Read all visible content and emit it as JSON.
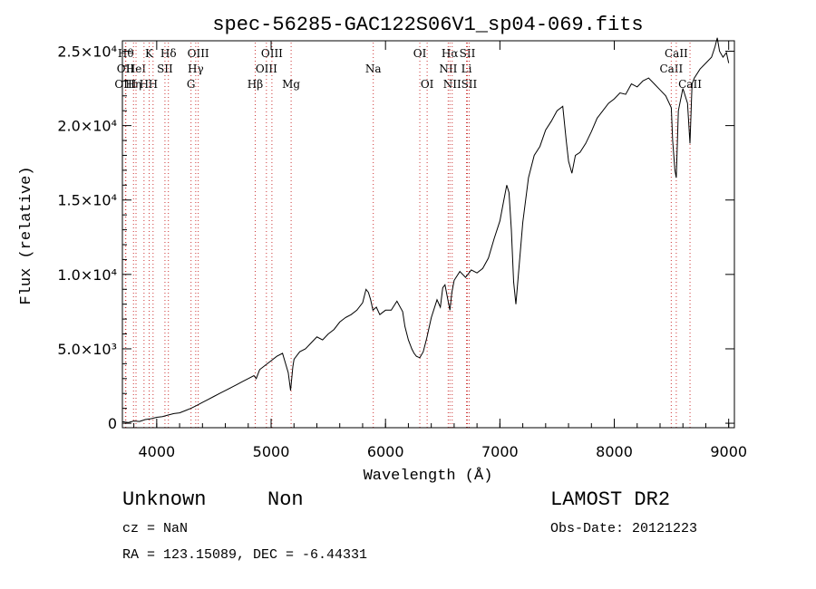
{
  "chart_data": {
    "type": "line",
    "title": "spec-56285-GAC122S06V1_sp04-069.fits",
    "xlabel": "Wavelength (Å)",
    "ylabel": "Flux (relative)",
    "xlim": [
      3700,
      9050
    ],
    "ylim": [
      -300,
      25700
    ],
    "xticks": [
      {
        "value": 4000,
        "label": "4000"
      },
      {
        "value": 5000,
        "label": "5000"
      },
      {
        "value": 6000,
        "label": "6000"
      },
      {
        "value": 7000,
        "label": "7000"
      },
      {
        "value": 8000,
        "label": "8000"
      },
      {
        "value": 9000,
        "label": "9000"
      }
    ],
    "yticks": [
      {
        "value": 0,
        "label": "0"
      },
      {
        "value": 5000,
        "label": "5.0×10³"
      },
      {
        "value": 10000,
        "label": "1.0×10⁴"
      },
      {
        "value": 15000,
        "label": "1.5×10⁴"
      },
      {
        "value": 20000,
        "label": "2.0×10⁴"
      },
      {
        "value": 25000,
        "label": "2.5×10⁴"
      }
    ],
    "series": [
      {
        "x": [
          3700,
          3750,
          3800,
          3850,
          3900,
          3950,
          4000,
          4050,
          4100,
          4150,
          4200,
          4250,
          4300,
          4350,
          4400,
          4450,
          4500,
          4550,
          4600,
          4650,
          4700,
          4750,
          4800,
          4850,
          4870,
          4900,
          4950,
          5000,
          5050,
          5100,
          5150,
          5170,
          5190,
          5200,
          5250,
          5300,
          5350,
          5400,
          5450,
          5500,
          5550,
          5600,
          5650,
          5700,
          5750,
          5800,
          5830,
          5850,
          5870,
          5890,
          5920,
          5950,
          6000,
          6050,
          6100,
          6150,
          6170,
          6200,
          6230,
          6250,
          6270,
          6300,
          6330,
          6360,
          6400,
          6450,
          6480,
          6500,
          6520,
          6550,
          6563,
          6580,
          6600,
          6650,
          6700,
          6750,
          6800,
          6850,
          6900,
          6950,
          7000,
          7030,
          7060,
          7080,
          7100,
          7120,
          7140,
          7160,
          7200,
          7250,
          7300,
          7350,
          7400,
          7450,
          7500,
          7550,
          7580,
          7600,
          7630,
          7660,
          7700,
          7750,
          7800,
          7850,
          7900,
          7950,
          8000,
          8050,
          8100,
          8150,
          8200,
          8250,
          8300,
          8350,
          8400,
          8450,
          8498,
          8510,
          8530,
          8542,
          8560,
          8600,
          8640,
          8662,
          8680,
          8700,
          8750,
          8800,
          8850,
          8880,
          8900,
          8920,
          8950,
          8980,
          9000
        ],
        "y": [
          100,
          50,
          150,
          120,
          250,
          300,
          400,
          450,
          550,
          650,
          700,
          850,
          1000,
          1200,
          1400,
          1600,
          1800,
          2000,
          2200,
          2400,
          2600,
          2800,
          3000,
          3200,
          3000,
          3600,
          3900,
          4200,
          4500,
          4700,
          3400,
          2200,
          3800,
          4300,
          4800,
          5000,
          5400,
          5800,
          5600,
          6000,
          6300,
          6800,
          7100,
          7300,
          7600,
          8100,
          9000,
          8800,
          8300,
          7600,
          7800,
          7300,
          7600,
          7600,
          8200,
          7500,
          6500,
          5600,
          5000,
          4700,
          4500,
          4400,
          4800,
          5700,
          7100,
          8300,
          7800,
          9100,
          9300,
          8100,
          7600,
          8800,
          9600,
          10200,
          9800,
          10300,
          10100,
          10400,
          11100,
          12400,
          13600,
          14800,
          16000,
          15500,
          13000,
          9500,
          8000,
          9800,
          13500,
          16500,
          18000,
          18600,
          19700,
          20300,
          21000,
          21300,
          19000,
          17600,
          16800,
          18000,
          18200,
          18800,
          19600,
          20500,
          21000,
          21500,
          21800,
          22200,
          22100,
          22800,
          22600,
          23000,
          23200,
          22800,
          22400,
          22000,
          21200,
          19000,
          17000,
          16500,
          21000,
          22500,
          21500,
          18800,
          22800,
          23200,
          23800,
          24200,
          24600,
          25300,
          25900,
          25000,
          24600,
          24900,
          24200
        ]
      }
    ],
    "lines": [
      {
        "x": 3730,
        "label": "Hθ",
        "row": 1
      },
      {
        "x": 3727,
        "label": "OII",
        "row": 2
      },
      {
        "x": 3727,
        "label": "OIII",
        "row": 3
      },
      {
        "x": 3797,
        "label": "Hη",
        "row": 3
      },
      {
        "x": 3819,
        "label": "HeI",
        "row": 2
      },
      {
        "x": 3889,
        "label": "H",
        "row": 3
      },
      {
        "x": 3934,
        "label": "K",
        "row": 1
      },
      {
        "x": 3968,
        "label": "H",
        "row": 3
      },
      {
        "x": 4072,
        "label": "SII",
        "row": 2
      },
      {
        "x": 4102,
        "label": "Hδ",
        "row": 1
      },
      {
        "x": 4300,
        "label": "G",
        "row": 3
      },
      {
        "x": 4341,
        "label": "Hγ",
        "row": 2
      },
      {
        "x": 4363,
        "label": "OIII",
        "row": 1
      },
      {
        "x": 4861,
        "label": "Hβ",
        "row": 3
      },
      {
        "x": 4959,
        "label": "OIII",
        "row": 2
      },
      {
        "x": 5007,
        "label": "OIII",
        "row": 1
      },
      {
        "x": 5175,
        "label": "Mg",
        "row": 3
      },
      {
        "x": 5893,
        "label": "Na",
        "row": 2
      },
      {
        "x": 6300,
        "label": "OI",
        "row": 1
      },
      {
        "x": 6364,
        "label": "OI",
        "row": 3
      },
      {
        "x": 6548,
        "label": "NII",
        "row": 2
      },
      {
        "x": 6563,
        "label": "Hα",
        "row": 1
      },
      {
        "x": 6583,
        "label": "NII",
        "row": 3
      },
      {
        "x": 6708,
        "label": "Li",
        "row": 2
      },
      {
        "x": 6716,
        "label": "SII",
        "row": 1
      },
      {
        "x": 6731,
        "label": "SII",
        "row": 3
      },
      {
        "x": 8498,
        "label": "CaII",
        "row": 2
      },
      {
        "x": 8542,
        "label": "CaII",
        "row": 1
      },
      {
        "x": 8662,
        "label": "CaII",
        "row": 3
      }
    ]
  },
  "info": {
    "class": "Unknown",
    "subclass": "Non",
    "survey": "LAMOST DR2",
    "redshift": "cz = NaN",
    "obs_date": "Obs-Date: 20121223",
    "coords": "RA = 123.15089, DEC =  -6.44331"
  }
}
